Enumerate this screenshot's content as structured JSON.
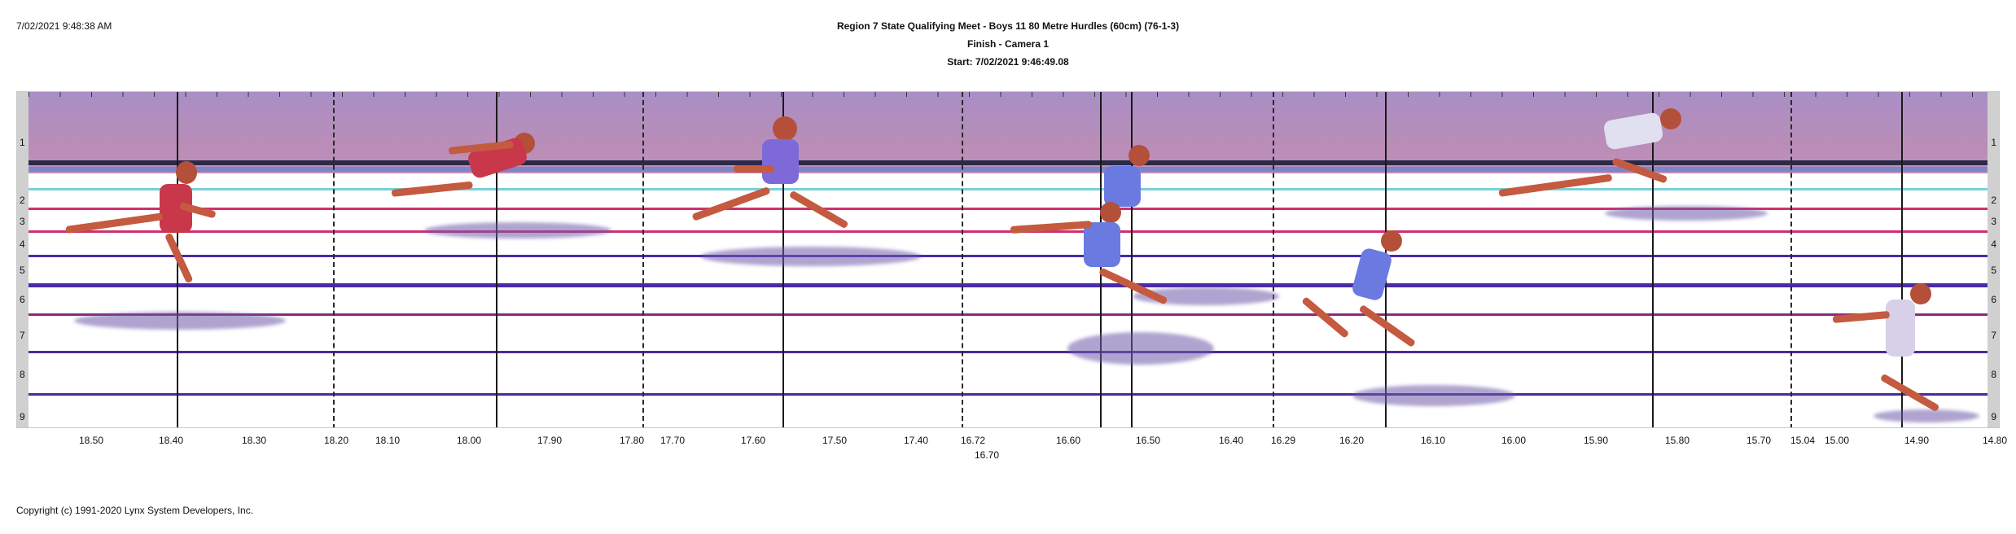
{
  "header": {
    "timestamp": "7/02/2021 9:48:38 AM",
    "event_title": "Region 7 State Qualifying Meet - Boys 11 80 Metre Hurdles (60cm) (76-1-3)",
    "camera": "Finish - Camera 1",
    "start_time": "Start: 7/02/2021 9:46:49.08"
  },
  "lanes": {
    "left": [
      "1",
      "2",
      "3",
      "4",
      "5",
      "6",
      "7",
      "8",
      "9"
    ],
    "right": [
      "1",
      "2",
      "3",
      "4",
      "5",
      "6",
      "7",
      "8",
      "9"
    ]
  },
  "scale_labels": [
    "18.50",
    "18.40",
    "18.30",
    "18.20",
    "18.10",
    "18.00",
    "17.90",
    "17.80",
    "17.70",
    "17.60",
    "17.50",
    "17.40",
    "16.72",
    "16.70",
    "16.60",
    "16.50",
    "16.40",
    "16.29",
    "16.20",
    "16.10",
    "16.00",
    "15.90",
    "15.80",
    "15.70",
    "15.04",
    "15.00",
    "14.90",
    "14.80"
  ],
  "colors": {
    "sky": "#b48fc0",
    "lane_line_pink": "#d0306e",
    "lane_line_purple": "#4a2aa8",
    "divider": "#1a1a1a"
  },
  "footer": {
    "copyright": "Copyright (c) 1991-2020 Lynx System Developers, Inc."
  }
}
